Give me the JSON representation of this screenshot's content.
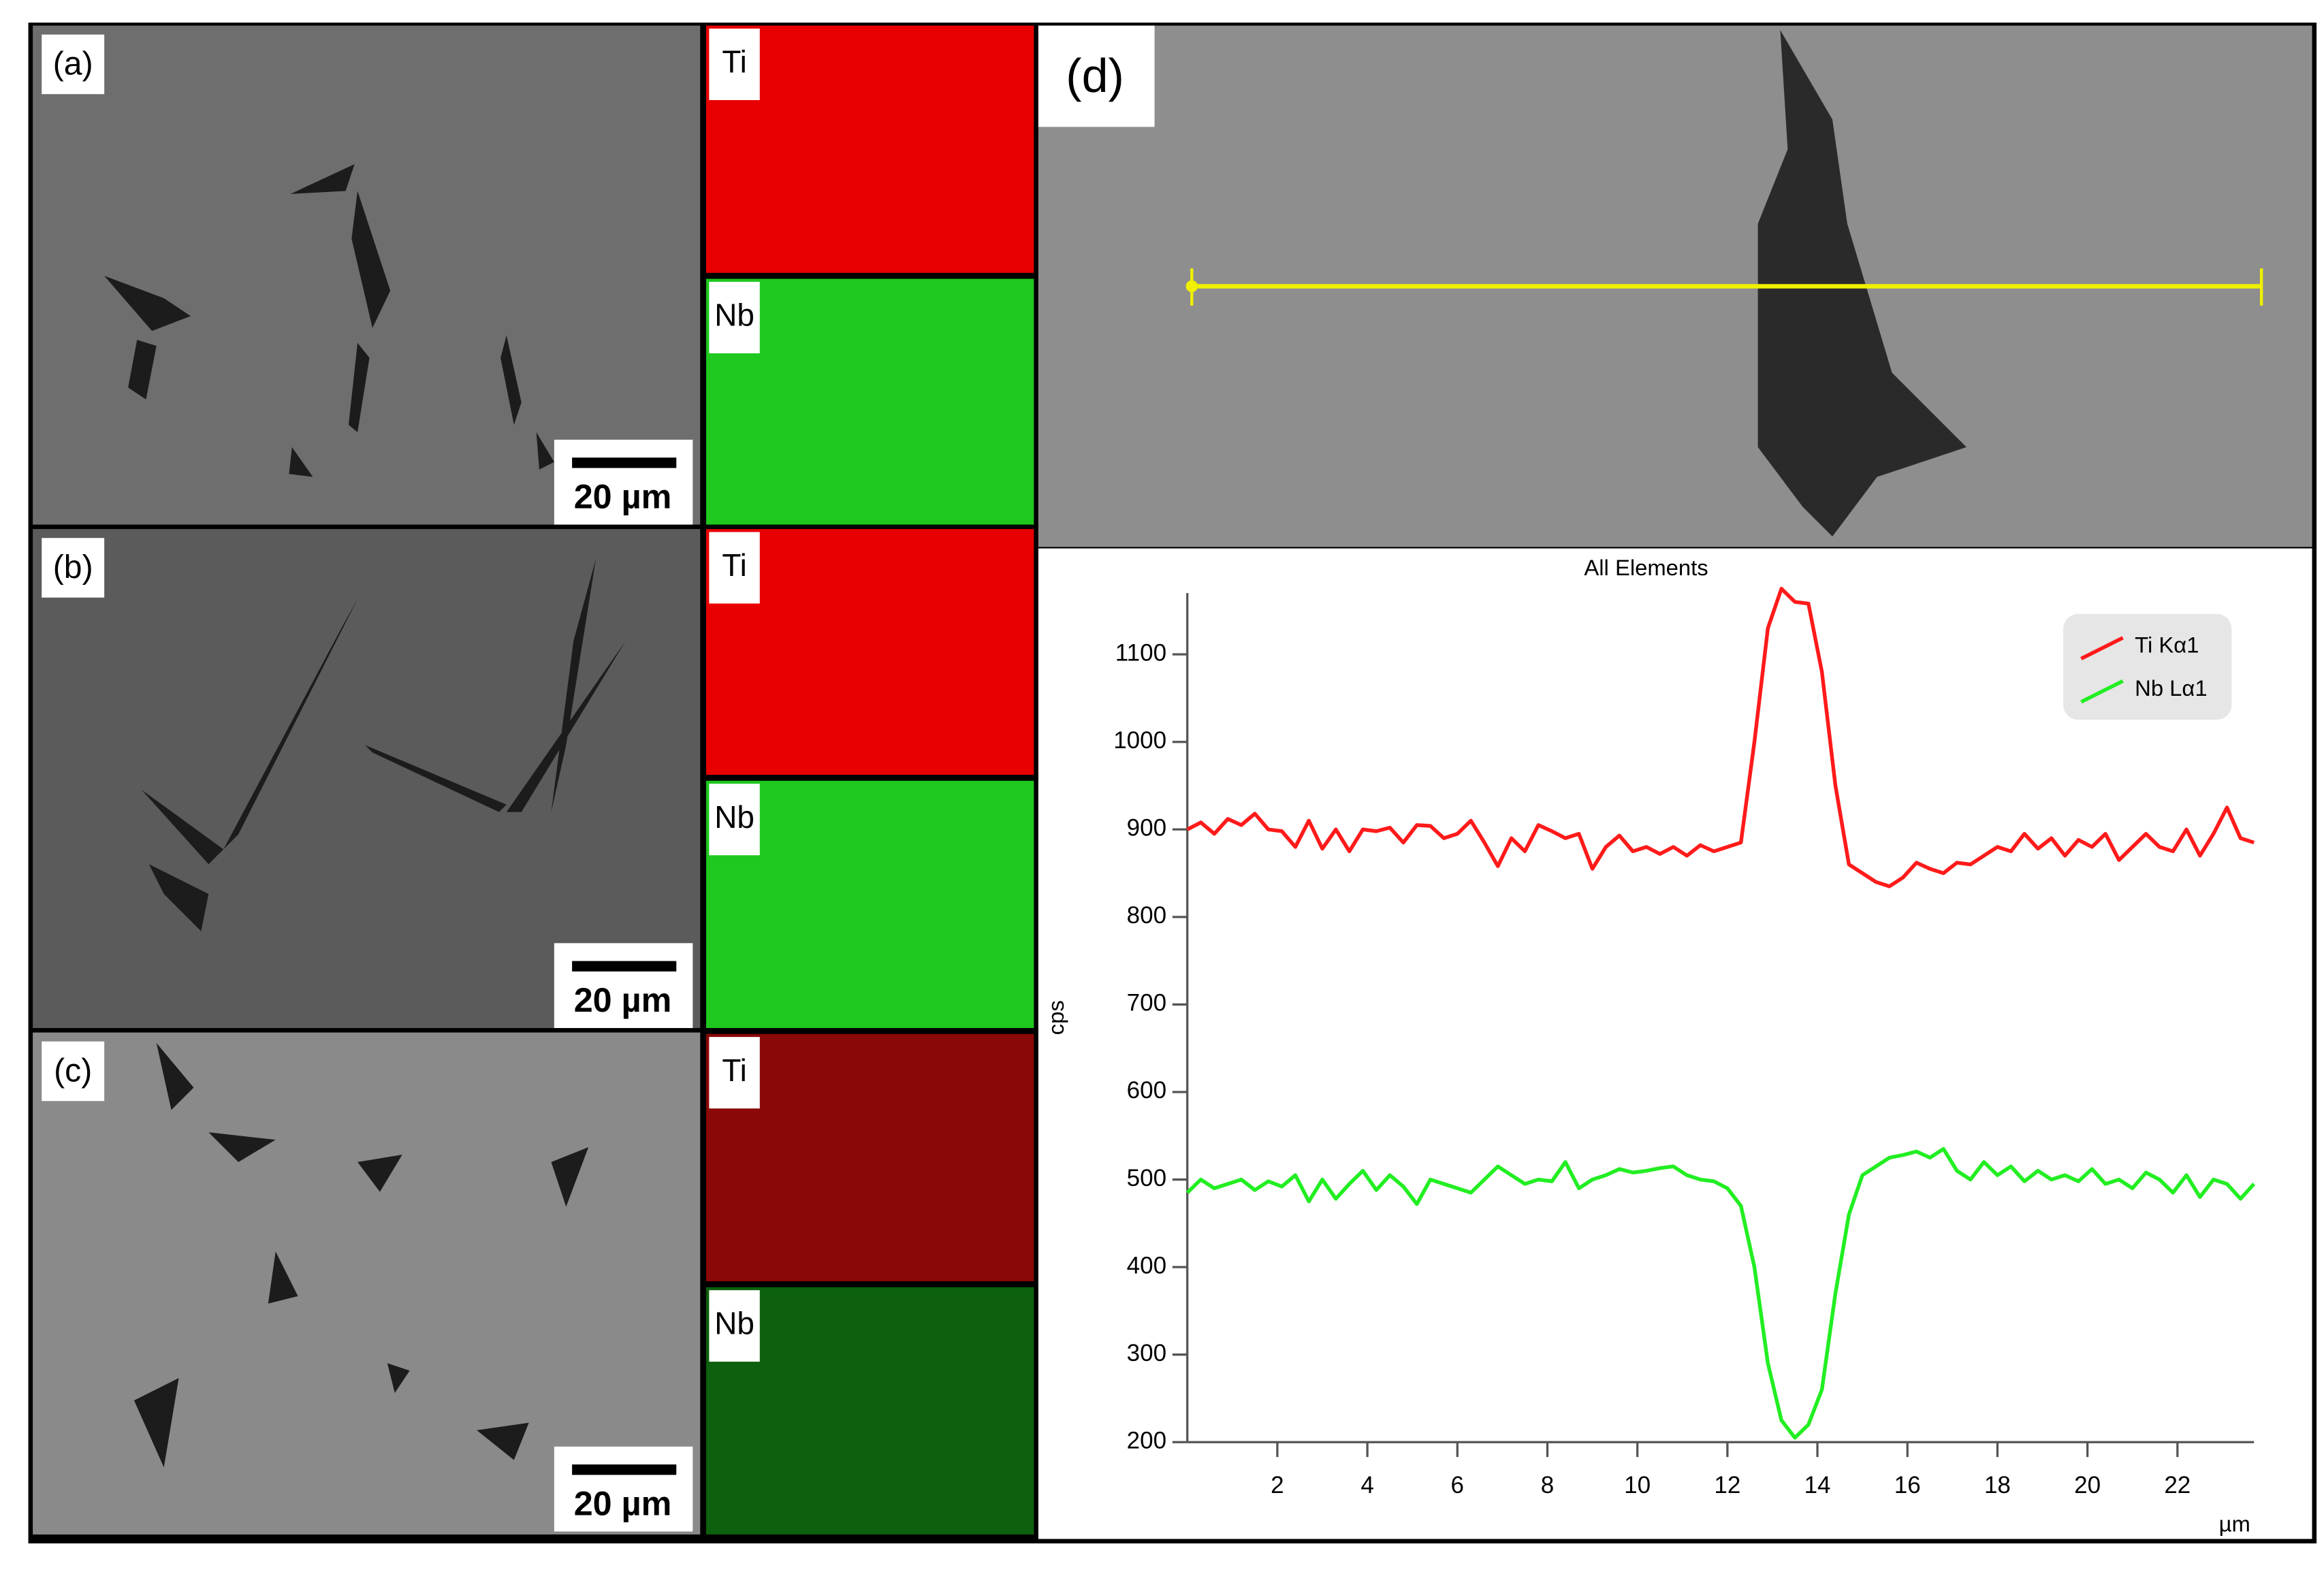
{
  "panels": [
    {
      "label": "(a)",
      "scale_bar": "20 µm"
    },
    {
      "label": "(b)",
      "scale_bar": "20 µm"
    },
    {
      "label": "(c)",
      "scale_bar": "20 µm"
    },
    {
      "label": "(d)"
    }
  ],
  "maps": [
    "Ti",
    "Nb",
    "Ti",
    "Nb",
    "Ti",
    "Nb"
  ],
  "chart_data": {
    "type": "line",
    "title": "All Elements",
    "x_label": "µm",
    "y_label": "cps",
    "x": [
      0,
      0.3,
      0.6,
      0.9,
      1.2,
      1.5,
      1.8,
      2.1,
      2.4,
      2.7,
      3.0,
      3.3,
      3.6,
      3.9,
      4.2,
      4.5,
      4.8,
      5.1,
      5.4,
      5.7,
      6.0,
      6.3,
      6.6,
      6.9,
      7.2,
      7.5,
      7.8,
      8.1,
      8.4,
      8.7,
      9.0,
      9.3,
      9.6,
      9.9,
      10.2,
      10.5,
      10.8,
      11.1,
      11.4,
      11.7,
      12.0,
      12.3,
      12.6,
      12.9,
      13.2,
      13.5,
      13.8,
      14.1,
      14.4,
      14.7,
      15.0,
      15.3,
      15.6,
      15.9,
      16.2,
      16.5,
      16.8,
      17.1,
      17.4,
      17.7,
      18.0,
      18.3,
      18.6,
      18.9,
      19.2,
      19.5,
      19.8,
      20.1,
      20.4,
      20.7,
      21.0,
      21.3,
      21.6,
      21.9,
      22.2,
      22.5,
      22.8,
      23.1,
      23.4,
      23.7
    ],
    "series": [
      {
        "name": "Ti Kα1",
        "color": "#ff1a1a",
        "values": [
          900,
          908,
          895,
          912,
          905,
          918,
          900,
          898,
          880,
          910,
          878,
          900,
          875,
          900,
          898,
          902,
          885,
          905,
          904,
          890,
          895,
          910,
          885,
          858,
          890,
          875,
          905,
          898,
          890,
          895,
          855,
          880,
          893,
          875,
          880,
          872,
          880,
          870,
          882,
          875,
          880,
          885,
          1000,
          1130,
          1175,
          1160,
          1158,
          1080,
          950,
          860,
          850,
          840,
          835,
          845,
          862,
          855,
          850,
          862,
          860,
          870,
          880,
          875,
          895,
          878,
          890,
          870,
          888,
          880,
          895,
          865,
          880,
          895,
          880,
          875,
          900,
          870,
          895,
          925,
          890,
          885
        ]
      },
      {
        "name": "Nb Lα1",
        "color": "#22ee22",
        "values": [
          485,
          500,
          490,
          495,
          500,
          488,
          498,
          492,
          505,
          475,
          500,
          478,
          495,
          510,
          488,
          505,
          492,
          472,
          500,
          495,
          490,
          485,
          500,
          515,
          505,
          495,
          500,
          498,
          520,
          490,
          500,
          505,
          512,
          508,
          510,
          513,
          515,
          505,
          500,
          498,
          490,
          470,
          400,
          290,
          225,
          205,
          220,
          260,
          370,
          460,
          505,
          515,
          525,
          528,
          532,
          525,
          535,
          510,
          500,
          520,
          505,
          515,
          498,
          510,
          500,
          505,
          498,
          512,
          495,
          500,
          490,
          508,
          500,
          485,
          505,
          480,
          500,
          495,
          478,
          495
        ]
      }
    ],
    "xlim": [
      0,
      23.7
    ],
    "ylim": [
      200,
      1170
    ],
    "xticks": [
      2,
      4,
      6,
      8,
      10,
      12,
      14,
      16,
      18,
      20,
      22
    ],
    "yticks": [
      200,
      300,
      400,
      500,
      600,
      700,
      800,
      900,
      1000,
      1100
    ],
    "legend": "upper right"
  }
}
